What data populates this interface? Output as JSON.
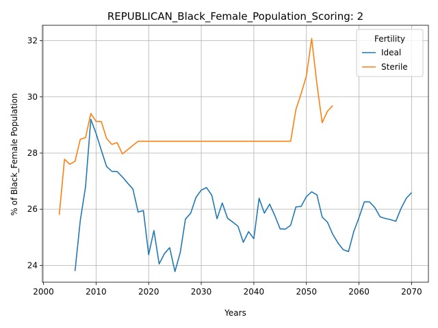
{
  "chart_data": {
    "type": "line",
    "title": "REPUBLICAN_Black_Female_Population_Scoring: 2",
    "xlabel": "Years",
    "ylabel": "% of Black_Female Population",
    "xlim": [
      1999.8,
      2073.2
    ],
    "ylim": [
      23.4,
      32.55
    ],
    "xticks": [
      2000,
      2010,
      2020,
      2030,
      2040,
      2050,
      2060,
      2070
    ],
    "yticks": [
      24,
      26,
      28,
      30,
      32
    ],
    "grid": true,
    "legend": {
      "title": "Fertility",
      "placement": "top-right"
    },
    "series": [
      {
        "name": "Ideal",
        "color": "#1f77b4",
        "x": [
          2006,
          2007,
          2008,
          2009,
          2010,
          2011,
          2012,
          2013,
          2014,
          2015,
          2016,
          2017,
          2018,
          2019,
          2020,
          2021,
          2022,
          2023,
          2024,
          2025,
          2026,
          2027,
          2028,
          2029,
          2030,
          2031,
          2032,
          2033,
          2034,
          2035,
          2036,
          2037,
          2038,
          2039,
          2040,
          2041,
          2042,
          2043,
          2044,
          2045,
          2046,
          2047,
          2048,
          2049,
          2050,
          2051,
          2052,
          2053,
          2054,
          2055,
          2056,
          2057,
          2058,
          2059,
          2060,
          2061,
          2062,
          2063,
          2064,
          2065,
          2066,
          2067,
          2068,
          2069,
          2070
        ],
        "y": [
          23.8,
          25.6,
          26.8,
          29.2,
          28.7,
          28.1,
          27.52,
          27.35,
          27.34,
          27.15,
          26.93,
          26.72,
          25.9,
          25.95,
          24.38,
          25.24,
          24.05,
          24.42,
          24.63,
          23.78,
          24.45,
          25.65,
          25.86,
          26.42,
          26.68,
          26.77,
          26.5,
          25.66,
          26.22,
          25.68,
          25.54,
          25.39,
          24.82,
          25.2,
          24.95,
          26.39,
          25.86,
          26.18,
          25.77,
          25.3,
          25.29,
          25.43,
          26.08,
          26.1,
          26.45,
          26.62,
          26.51,
          25.72,
          25.54,
          25.11,
          24.8,
          24.56,
          24.49,
          25.2,
          25.7,
          26.26,
          26.26,
          26.06,
          25.73,
          25.67,
          25.63,
          25.57,
          26.03,
          26.39,
          26.59
        ]
      },
      {
        "name": "Sterile",
        "color": "#ff7f0e",
        "x": [
          2003,
          2004,
          2005,
          2006,
          2007,
          2008,
          2009,
          2010,
          2011,
          2012,
          2013,
          2014,
          2015,
          2016,
          2017,
          2018,
          2019,
          2020,
          2025,
          2030,
          2035,
          2040,
          2045,
          2047,
          2048,
          2049,
          2050,
          2051,
          2052,
          2053,
          2054,
          2055
        ],
        "y": [
          25.8,
          27.78,
          27.6,
          27.71,
          28.49,
          28.55,
          29.41,
          29.13,
          29.12,
          28.52,
          28.31,
          28.37,
          27.97,
          28.12,
          28.27,
          28.42,
          28.42,
          28.42,
          28.42,
          28.42,
          28.42,
          28.42,
          28.42,
          28.42,
          29.55,
          30.12,
          30.75,
          32.08,
          30.45,
          29.08,
          29.49,
          29.69
        ]
      }
    ]
  }
}
